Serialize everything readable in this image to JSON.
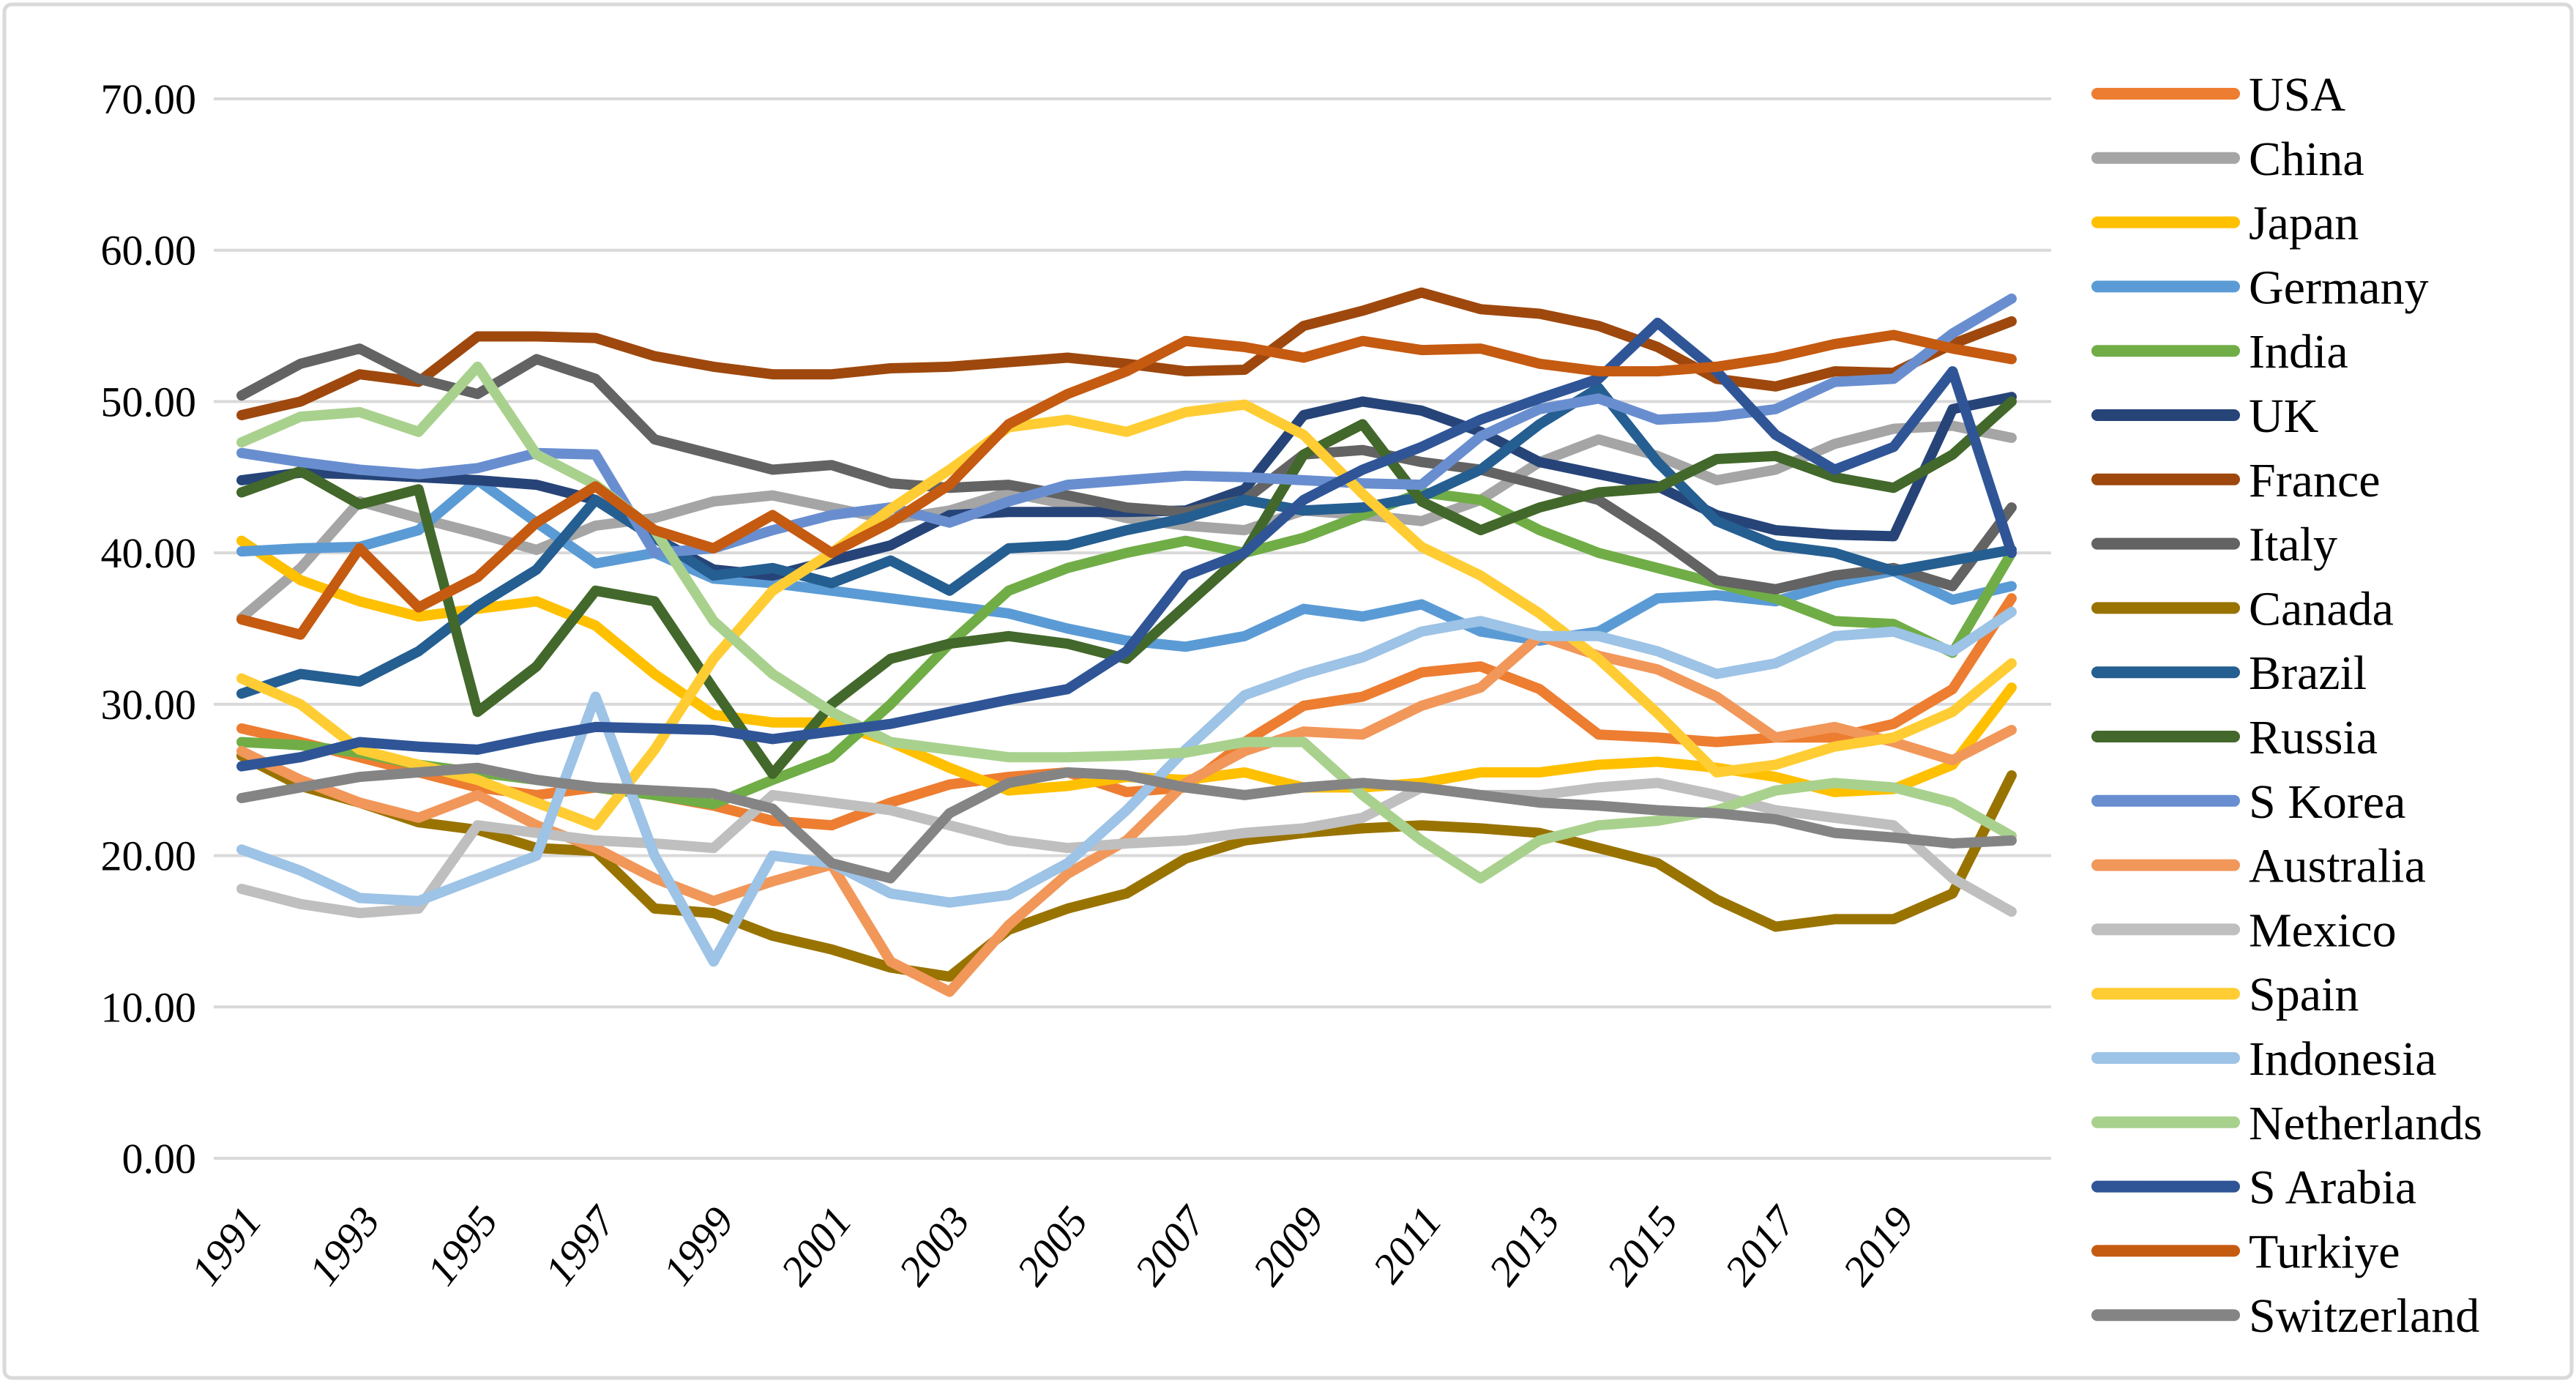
{
  "figure": {
    "background_color": "#FFFFFF",
    "border_color": "#D9D9D9",
    "gridline_color": "#D9D9D9"
  },
  "chart_data": {
    "type": "line",
    "title": "",
    "xlabel": "",
    "ylabel": "",
    "ylim": [
      0,
      70
    ],
    "y_tick_step": 10,
    "grid": true,
    "legend_position": "right",
    "x": [
      1991,
      1992,
      1993,
      1994,
      1995,
      1996,
      1997,
      1998,
      1999,
      2000,
      2001,
      2002,
      2003,
      2004,
      2005,
      2006,
      2007,
      2008,
      2009,
      2010,
      2011,
      2012,
      2013,
      2014,
      2015,
      2016,
      2017,
      2018,
      2019,
      2020,
      2021
    ],
    "x_tick_labels": [
      "1991",
      "1993",
      "1995",
      "1997",
      "1999",
      "2001",
      "2003",
      "2005",
      "2007",
      "2009",
      "2011",
      "2013",
      "2015",
      "2017",
      "2019"
    ],
    "y_ticks": [
      "0.00",
      "10.00",
      "20.00",
      "30.00",
      "40.00",
      "50.00",
      "60.00",
      "70.00"
    ],
    "series": [
      {
        "name": "USA",
        "color": "#ED7D31",
        "values": [
          28.4,
          27.5,
          26.5,
          25.5,
          24.5,
          24.0,
          24.5,
          24.0,
          23.3,
          22.3,
          22.0,
          23.5,
          24.7,
          25.2,
          25.5,
          24.2,
          24.5,
          27.5,
          29.9,
          30.5,
          32.1,
          32.5,
          31.0,
          28.0,
          27.8,
          27.5,
          27.8,
          27.8,
          28.7,
          31.0,
          37.0
        ]
      },
      {
        "name": "China",
        "color": "#A5A5A5",
        "values": [
          35.7,
          39.0,
          43.4,
          42.3,
          41.3,
          40.2,
          41.8,
          42.3,
          43.4,
          43.8,
          43.0,
          42.2,
          42.8,
          44.0,
          43.2,
          42.3,
          41.8,
          41.5,
          42.8,
          42.5,
          42.1,
          43.5,
          46.0,
          47.5,
          46.4,
          44.8,
          45.5,
          47.2,
          48.2,
          48.4,
          47.6
        ]
      },
      {
        "name": "Japan",
        "color": "#FFC000",
        "values": [
          40.8,
          38.2,
          36.8,
          35.8,
          36.3,
          36.8,
          35.2,
          32.0,
          29.3,
          28.8,
          28.8,
          27.5,
          25.8,
          24.3,
          24.6,
          25.2,
          25.0,
          25.5,
          24.5,
          24.5,
          24.8,
          25.5,
          25.5,
          26.0,
          26.2,
          25.8,
          25.2,
          24.2,
          24.4,
          26.0,
          31.1
        ]
      },
      {
        "name": "Germany",
        "color": "#5B9BD5",
        "values": [
          40.1,
          40.3,
          40.4,
          41.5,
          44.8,
          42.0,
          39.3,
          40.0,
          38.3,
          38.0,
          37.5,
          37.0,
          36.5,
          36.0,
          35.0,
          34.2,
          33.8,
          34.5,
          36.3,
          35.8,
          36.6,
          34.8,
          34.2,
          34.8,
          37.0,
          37.2,
          36.8,
          38.0,
          38.8,
          36.9,
          37.8
        ]
      },
      {
        "name": "India",
        "color": "#70AD47",
        "values": [
          27.5,
          27.3,
          26.8,
          26.0,
          25.5,
          25.0,
          24.5,
          24.0,
          23.4,
          25.0,
          26.5,
          30.0,
          34.0,
          37.5,
          39.0,
          40.0,
          40.8,
          40.0,
          41.0,
          42.5,
          44.0,
          43.5,
          41.5,
          40.0,
          39.0,
          38.0,
          37.0,
          35.5,
          35.3,
          33.4,
          40.0
        ]
      },
      {
        "name": "UK",
        "color": "#264478",
        "values": [
          44.8,
          45.3,
          45.2,
          45.0,
          44.8,
          44.5,
          43.5,
          41.0,
          38.9,
          38.5,
          39.5,
          40.5,
          42.5,
          42.7,
          42.7,
          42.7,
          42.8,
          44.2,
          49.1,
          50.0,
          49.4,
          48.0,
          46.0,
          45.2,
          44.4,
          42.5,
          41.5,
          41.2,
          41.1,
          49.5,
          50.3
        ]
      },
      {
        "name": "France",
        "color": "#9E480E",
        "values": [
          49.1,
          50.0,
          51.8,
          51.3,
          54.3,
          54.3,
          54.2,
          53.0,
          52.3,
          51.8,
          51.8,
          52.2,
          52.3,
          52.6,
          52.9,
          52.5,
          52.0,
          52.1,
          55.0,
          56.0,
          57.2,
          56.1,
          55.8,
          55.0,
          53.6,
          51.5,
          51.0,
          52.0,
          51.9,
          53.8,
          55.3
        ]
      },
      {
        "name": "Italy",
        "color": "#636363",
        "values": [
          50.4,
          52.5,
          53.5,
          51.5,
          50.5,
          52.8,
          51.5,
          47.5,
          46.5,
          45.5,
          45.8,
          44.6,
          44.3,
          44.5,
          43.8,
          43.0,
          42.7,
          43.5,
          46.5,
          46.8,
          46.0,
          45.5,
          44.5,
          43.5,
          41.0,
          38.2,
          37.6,
          38.5,
          39.0,
          37.8,
          43.0
        ]
      },
      {
        "name": "Canada",
        "color": "#997300",
        "values": [
          26.6,
          24.6,
          23.5,
          22.2,
          21.7,
          20.5,
          20.3,
          16.5,
          16.2,
          14.7,
          13.8,
          12.6,
          12.0,
          15.1,
          16.5,
          17.5,
          19.8,
          21.0,
          21.5,
          21.8,
          22.0,
          21.8,
          21.5,
          20.5,
          19.5,
          17.1,
          15.3,
          15.8,
          15.8,
          17.5,
          25.3
        ]
      },
      {
        "name": "Brazil",
        "color": "#255E91",
        "values": [
          30.7,
          32.0,
          31.5,
          33.5,
          36.5,
          38.9,
          43.5,
          41.0,
          38.5,
          39.0,
          38.0,
          39.5,
          37.5,
          40.3,
          40.5,
          41.5,
          42.3,
          43.5,
          42.8,
          43.0,
          43.7,
          45.5,
          48.5,
          50.9,
          46.0,
          42.1,
          40.5,
          40.0,
          38.8,
          39.5,
          40.2
        ]
      },
      {
        "name": "Russia",
        "color": "#43682B",
        "values": [
          44.0,
          45.4,
          43.2,
          44.2,
          29.5,
          32.5,
          37.5,
          36.8,
          31.0,
          25.4,
          30.0,
          33.0,
          34.0,
          34.5,
          34.0,
          33.0,
          36.5,
          40.0,
          46.5,
          48.5,
          43.4,
          41.5,
          43.0,
          44.0,
          44.3,
          46.2,
          46.4,
          45.0,
          44.3,
          46.5,
          50.0
        ]
      },
      {
        "name": "S Korea",
        "color": "#698ED0",
        "values": [
          46.6,
          46.0,
          45.5,
          45.2,
          45.6,
          46.6,
          46.5,
          40.0,
          40.3,
          41.5,
          42.5,
          43.0,
          42.0,
          43.4,
          44.5,
          44.8,
          45.1,
          45.0,
          44.8,
          44.6,
          44.5,
          47.7,
          49.5,
          50.2,
          48.8,
          49.0,
          49.5,
          51.3,
          51.5,
          54.5,
          56.8
        ]
      },
      {
        "name": "Australia",
        "color": "#F1975A",
        "values": [
          26.9,
          25.0,
          23.5,
          22.5,
          24.0,
          22.0,
          20.5,
          18.5,
          17.0,
          18.3,
          19.4,
          13.0,
          11.0,
          15.4,
          18.8,
          21.0,
          24.8,
          26.9,
          28.2,
          28.0,
          29.9,
          31.1,
          34.5,
          33.2,
          32.3,
          30.5,
          27.8,
          28.5,
          27.5,
          26.3,
          28.3
        ]
      },
      {
        "name": "Mexico",
        "color": "#BFBFBF",
        "values": [
          17.8,
          16.8,
          16.2,
          16.5,
          22.0,
          21.5,
          21.0,
          20.8,
          20.5,
          24.0,
          23.5,
          23.0,
          22.0,
          21.0,
          20.5,
          20.8,
          21.0,
          21.5,
          21.8,
          22.5,
          24.5,
          24.0,
          24.0,
          24.5,
          24.8,
          24.0,
          23.0,
          22.5,
          22.0,
          18.5,
          16.3
        ]
      },
      {
        "name": "Spain",
        "color": "#FFCD33",
        "values": [
          31.7,
          30.0,
          27.0,
          26.0,
          25.0,
          23.5,
          22.0,
          27.0,
          33.0,
          37.5,
          40.0,
          42.9,
          45.5,
          48.3,
          48.8,
          48.0,
          49.3,
          49.8,
          47.8,
          43.9,
          40.4,
          38.5,
          36.0,
          33.0,
          29.4,
          25.5,
          26.0,
          27.2,
          27.8,
          29.5,
          32.7
        ]
      },
      {
        "name": "Indonesia",
        "color": "#9DC3E6",
        "values": [
          20.4,
          19.0,
          17.2,
          17.0,
          18.5,
          20.0,
          30.5,
          20.0,
          13.0,
          20.0,
          19.5,
          17.5,
          16.9,
          17.4,
          19.5,
          23.0,
          27.0,
          30.6,
          32.0,
          33.1,
          34.8,
          35.5,
          34.5,
          34.5,
          33.5,
          32.0,
          32.7,
          34.5,
          34.8,
          33.5,
          36.1
        ]
      },
      {
        "name": "Netherlands",
        "color": "#A9D18E",
        "values": [
          47.3,
          49.0,
          49.3,
          48.0,
          52.3,
          46.5,
          44.5,
          41.5,
          35.5,
          32.0,
          29.5,
          27.5,
          27.0,
          26.5,
          26.5,
          26.6,
          26.8,
          27.5,
          27.5,
          24.0,
          21.0,
          18.5,
          21.0,
          22.0,
          22.3,
          23.0,
          24.3,
          24.8,
          24.5,
          23.5,
          21.3
        ]
      },
      {
        "name": "S Arabia",
        "color": "#2F5597",
        "values": [
          25.9,
          26.5,
          27.5,
          27.2,
          27.0,
          27.8,
          28.5,
          28.4,
          28.3,
          27.7,
          28.2,
          28.7,
          29.5,
          30.3,
          31.0,
          33.5,
          38.5,
          40.0,
          43.5,
          45.5,
          47.0,
          48.8,
          50.2,
          51.5,
          55.2,
          52.0,
          47.8,
          45.5,
          47.0,
          52.0,
          40.0
        ]
      },
      {
        "name": "Turkiye",
        "color": "#C55A11",
        "values": [
          35.6,
          34.6,
          40.3,
          36.4,
          38.4,
          42.0,
          44.4,
          41.5,
          40.3,
          42.5,
          40.0,
          42.0,
          44.5,
          48.5,
          50.5,
          52.0,
          54.0,
          53.6,
          52.9,
          54.0,
          53.4,
          53.5,
          52.5,
          52.0,
          52.0,
          52.3,
          52.9,
          53.8,
          54.4,
          53.5,
          52.8
        ]
      },
      {
        "name": "Switzerland",
        "color": "#848484",
        "values": [
          23.8,
          24.5,
          25.2,
          25.5,
          25.8,
          25.0,
          24.5,
          24.3,
          24.1,
          23.1,
          19.5,
          18.5,
          22.8,
          24.8,
          25.5,
          25.3,
          24.5,
          24.0,
          24.5,
          24.8,
          24.5,
          24.0,
          23.5,
          23.3,
          23.0,
          22.8,
          22.4,
          21.5,
          21.2,
          20.8,
          21.0
        ]
      }
    ]
  }
}
